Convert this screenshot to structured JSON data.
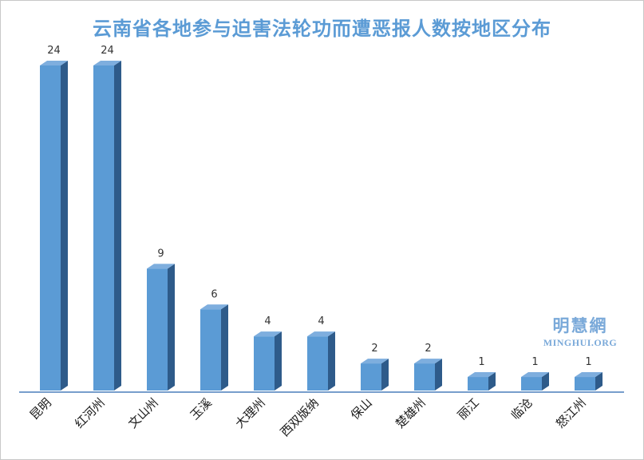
{
  "chart_data": {
    "type": "bar",
    "title": "云南省各地参与迫害法轮功而遭恶报人数按地区分布",
    "categories": [
      "昆明",
      "红河州",
      "文山州",
      "玉溪",
      "大理州",
      "西双版纳",
      "保山",
      "楚雄州",
      "丽江",
      "临沧",
      "怒江州"
    ],
    "values": [
      24,
      24,
      9,
      6,
      4,
      4,
      2,
      2,
      1,
      1,
      1
    ],
    "ylim": [
      0,
      24
    ],
    "grid": false,
    "legend": "none",
    "data_labels": true
  },
  "watermark": {
    "name": "明慧網",
    "domain": "MINGHUI.ORG"
  },
  "colors": {
    "title": "#5b9bd5",
    "bar_front": "#5b9bd5",
    "bar_side": "#2e5b8a",
    "bar_top": "#7eaede",
    "axis": "#4a7ebb"
  }
}
